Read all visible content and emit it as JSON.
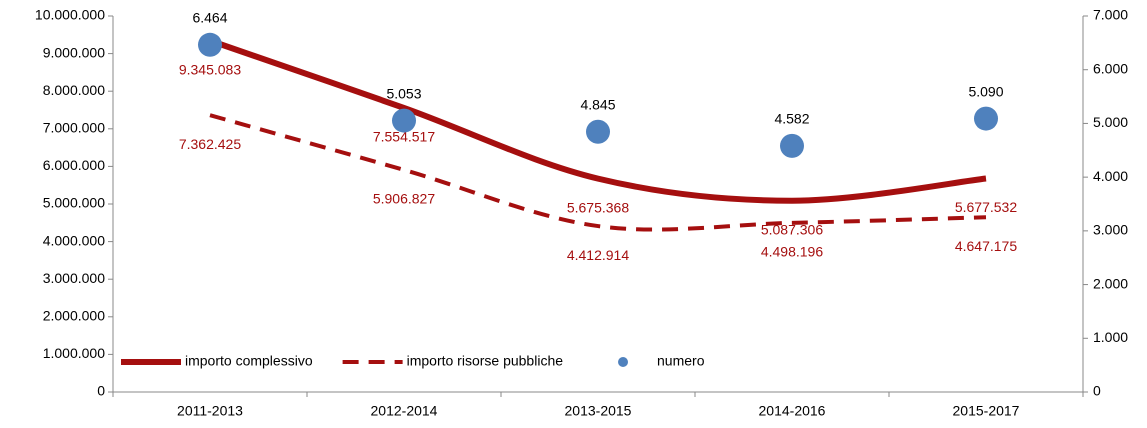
{
  "chart_data": {
    "type": "line",
    "categories": [
      "2011-2013",
      "2012-2014",
      "2013-2015",
      "2014-2016",
      "2015-2017"
    ],
    "series": [
      {
        "name": "importo complessivo",
        "color": "#a50f0f",
        "dash": false,
        "values": [
          9345083,
          7554517,
          5675368,
          5087306,
          5677532
        ],
        "value_labels": [
          "9.345.083",
          "7.554.517",
          "5.675.368",
          "5.087.306",
          "5.677.532"
        ]
      },
      {
        "name": "importo risorse pubbliche",
        "color": "#a50f0f",
        "dash": true,
        "values": [
          7362425,
          5906827,
          4412914,
          4498196,
          4647175
        ],
        "value_labels": [
          "7.362.425",
          "5.906.827",
          "4.412.914",
          "4.498.196",
          "4.647.175"
        ]
      },
      {
        "name": "numero",
        "color": "#4f81bd",
        "axis": "y2",
        "marker": "scatter",
        "values": [
          6464,
          5053,
          4845,
          4582,
          5090
        ],
        "value_labels": [
          "6.464",
          "5.053",
          "4.845",
          "4.582",
          "5.090"
        ]
      }
    ],
    "ylim": [
      0,
      10000000
    ],
    "yticks": [
      0,
      {
        "value": 1000000,
        "label": "1.000.000"
      },
      {
        "value": 2000000,
        "label": "2.000.000"
      },
      {
        "value": 3000000,
        "label": "3.000.000"
      },
      {
        "value": 4000000,
        "label": "4.000.000"
      },
      {
        "value": 5000000,
        "label": "5.000.000"
      },
      {
        "value": 6000000,
        "label": "6.000.000"
      },
      {
        "value": 7000000,
        "label": "7.000.000"
      },
      {
        "value": 8000000,
        "label": "8.000.000"
      },
      {
        "value": 9000000,
        "label": "9.000.000"
      },
      {
        "value": 10000000,
        "label": "10.000.000"
      }
    ],
    "y2lim": [
      0,
      7000
    ],
    "y2ticks": [
      0,
      {
        "value": 1000,
        "label": "1.000"
      },
      {
        "value": 2000,
        "label": "2.000"
      },
      {
        "value": 3000,
        "label": "3.000"
      },
      {
        "value": 4000,
        "label": "4.000"
      },
      {
        "value": 5000,
        "label": "5.000"
      },
      {
        "value": 6000,
        "label": "6.000"
      },
      {
        "value": 7000,
        "label": "7.000"
      }
    ],
    "legend": "lower left",
    "grid": false,
    "smooth": true
  }
}
